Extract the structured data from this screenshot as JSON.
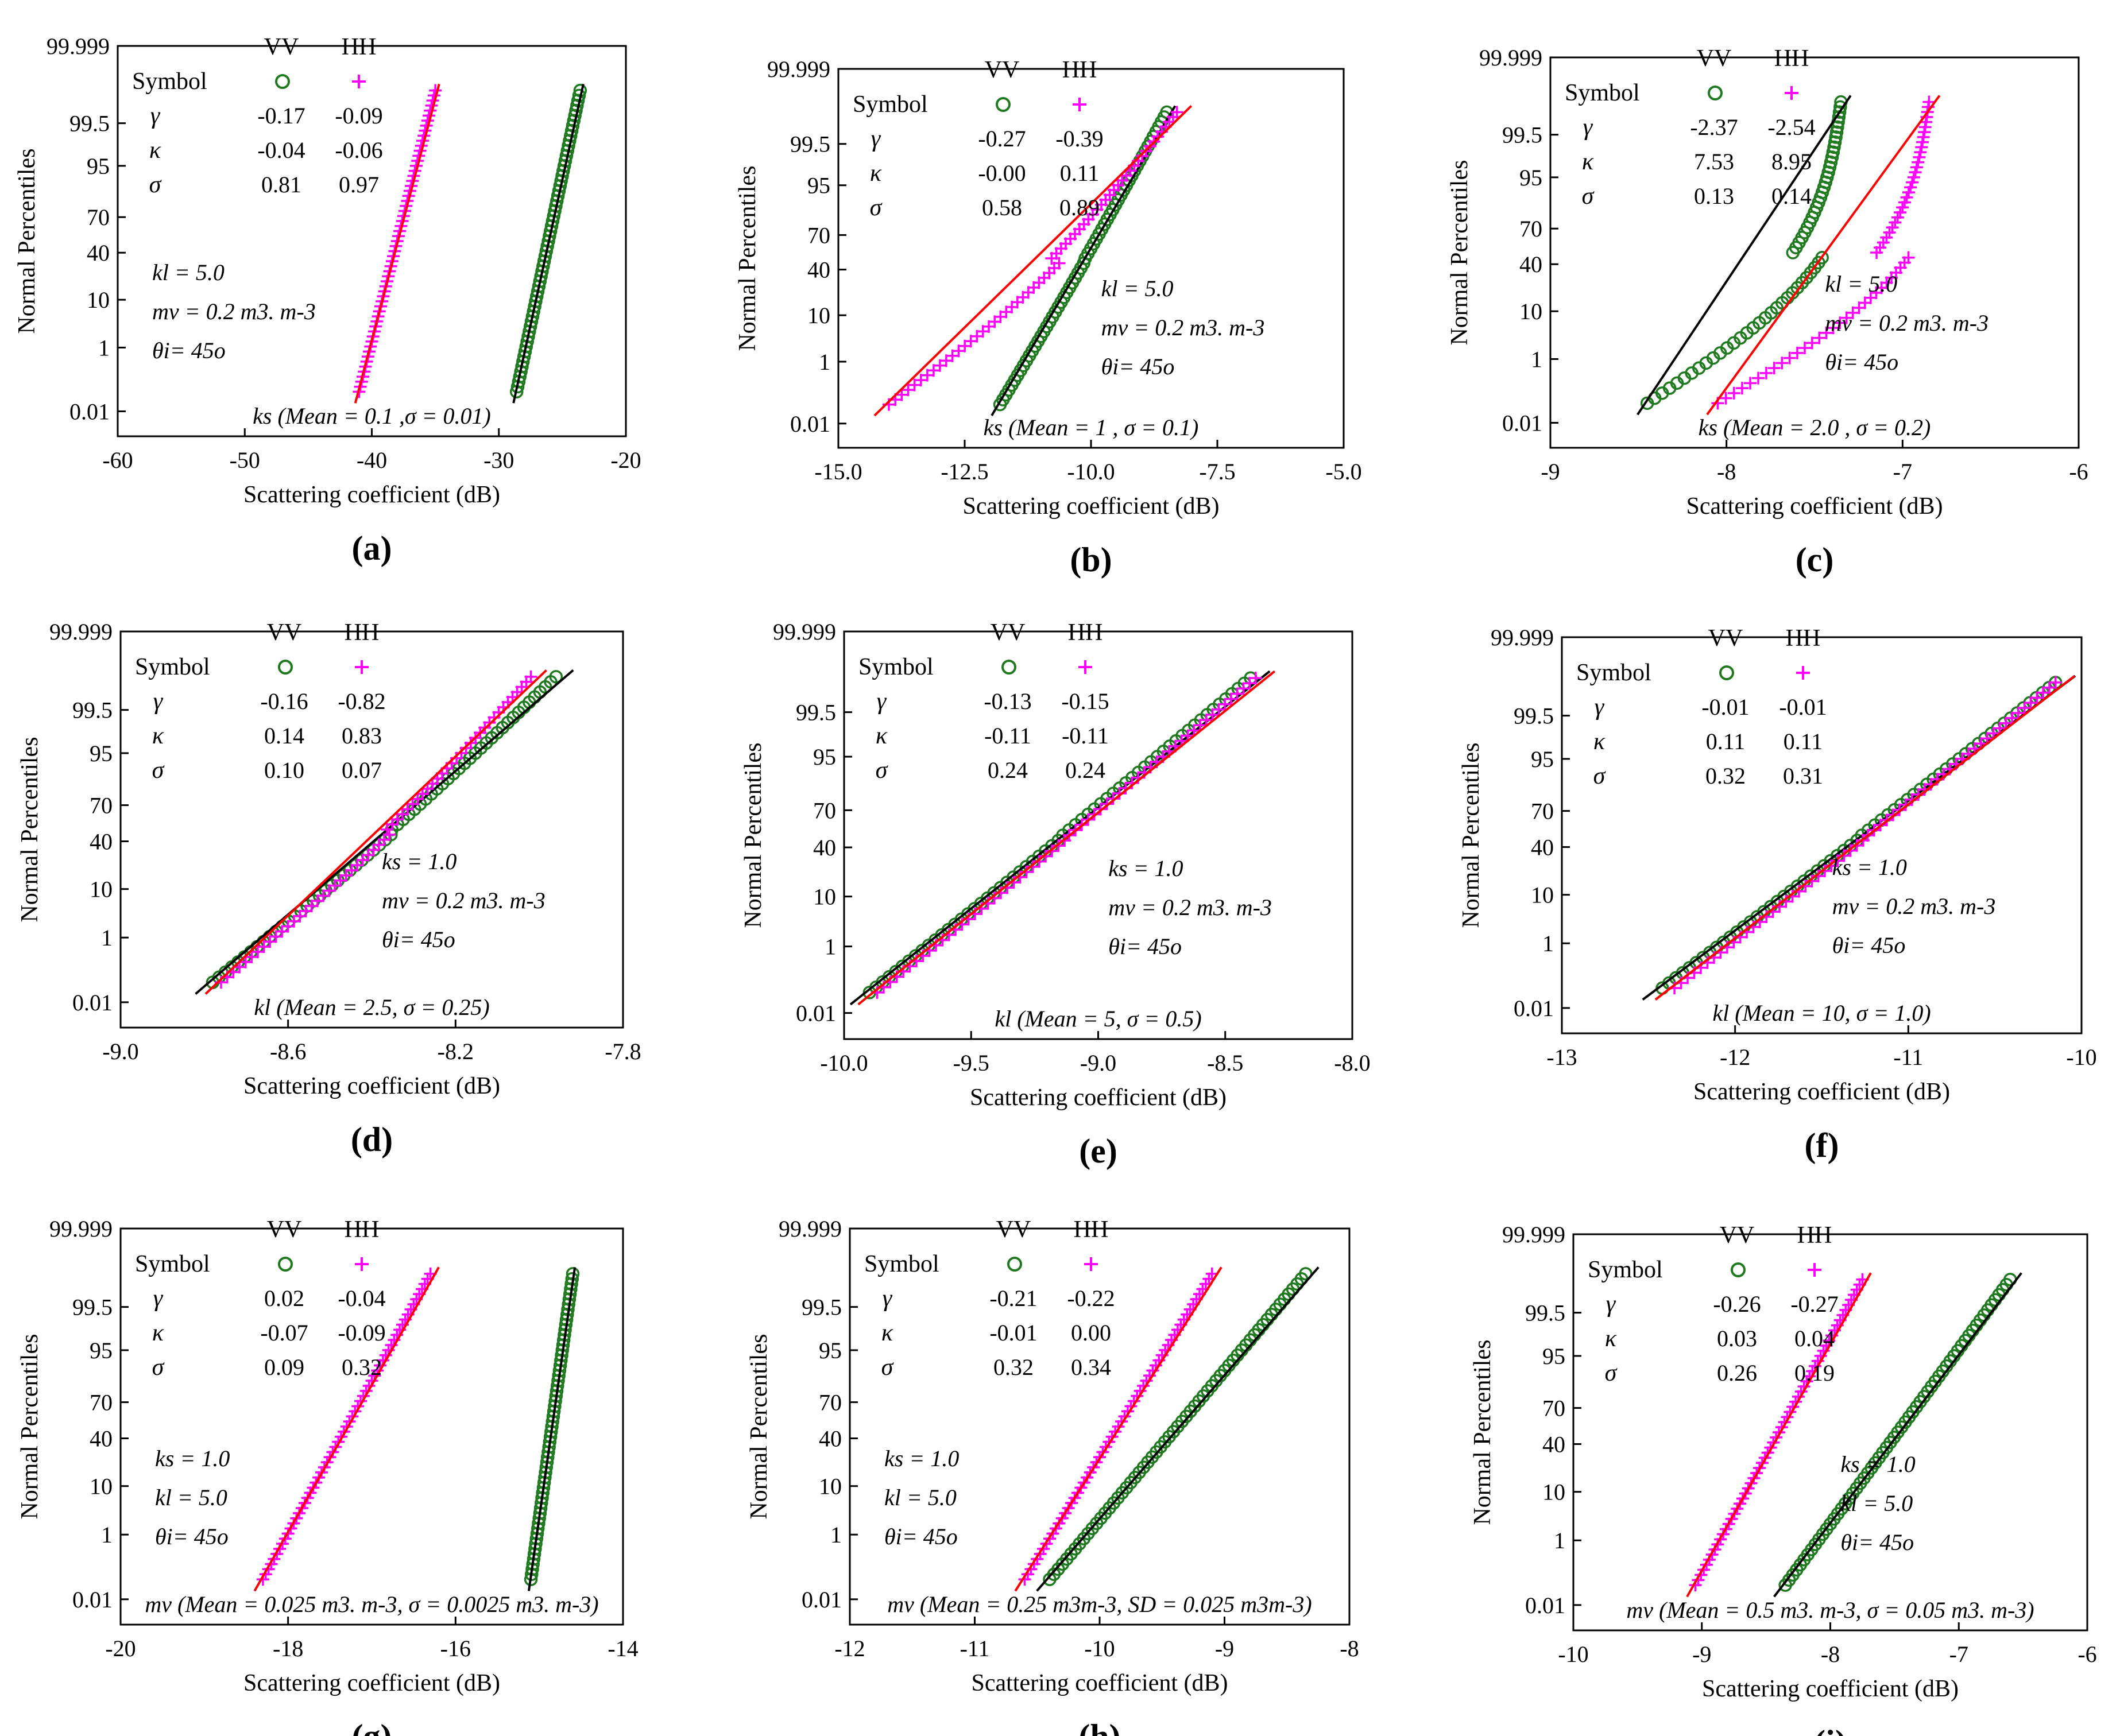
{
  "figure": {
    "y_axis_label": "Normal Percentiles",
    "x_axis_label": "Scattering coefficient (dB)",
    "y_ticks": [
      "0.01",
      "1",
      "10",
      "40",
      "70",
      "95",
      "99.5",
      "99.999"
    ],
    "stats_header": {
      "symbol": "Symbol",
      "vv": "VV",
      "hh": "HH"
    },
    "stat_names": [
      "γ",
      "κ",
      "σ"
    ],
    "colors": {
      "vv": "#1f7a1f",
      "hh": "#ff00ff",
      "vv_fit": "#000000",
      "hh_fit": "#ff0000"
    },
    "marker_icons": {
      "vv": "circle-icon",
      "hh": "plus-icon"
    }
  },
  "chart_data": [
    {
      "panel": "(a)",
      "type": "scatter",
      "title": "",
      "xlabel": "Scattering coefficient (dB)",
      "ylabel": "Normal Percentiles",
      "xlim": [
        -60,
        -20
      ],
      "x_ticks": [
        "-60",
        "-50",
        "-40",
        "-30",
        "-20"
      ],
      "stats": {
        "vv": [
          "-0.17",
          "-0.04",
          "0.81"
        ],
        "hh": [
          "-0.09",
          "-0.06",
          "0.97"
        ]
      },
      "annotations": [
        "kl = 5.0",
        "mv = 0.2 m3. m-3",
        "θi= 45o",
        "ks (Mean = 0.1 ,σ = 0.01)"
      ],
      "series": [
        {
          "name": "VV",
          "x_min": -28.6,
          "x_max": -23.6,
          "p_min": 0.05,
          "p_max": 99.95,
          "shape": 0
        },
        {
          "name": "HH",
          "x_min": -41.0,
          "x_max": -35.0,
          "p_min": 0.05,
          "p_max": 99.95,
          "shape": 0
        }
      ]
    },
    {
      "panel": "(b)",
      "type": "scatter",
      "title": "",
      "xlabel": "Scattering coefficient (dB)",
      "ylabel": "Normal Percentiles",
      "xlim": [
        -15,
        -5
      ],
      "x_ticks": [
        "-15.0",
        "-12.5",
        "-10.0",
        "-7.5",
        "-5.0"
      ],
      "stats": {
        "vv": [
          "-0.27",
          "-0.00",
          "0.58"
        ],
        "hh": [
          "-0.39",
          "0.11",
          "0.89"
        ]
      },
      "annotations": [
        "kl = 5.0",
        "mv = 0.2 m3. m-3",
        "θi= 45o",
        "ks (Mean = 1 , σ = 0.1)"
      ],
      "series": [
        {
          "name": "VV",
          "x_min": -11.8,
          "x_max": -8.5,
          "p_min": 0.05,
          "p_max": 99.95,
          "shape": 0.15
        },
        {
          "name": "HH",
          "x_min": -14.0,
          "x_max": -8.3,
          "p_min": 0.05,
          "p_max": 99.95,
          "shape": 0.9
        }
      ]
    },
    {
      "panel": "(c)",
      "type": "scatter",
      "title": "",
      "xlabel": "Scattering coefficient (dB)",
      "ylabel": "Normal Percentiles",
      "xlim": [
        -9,
        -6
      ],
      "x_ticks": [
        "-9",
        "-8",
        "-7",
        "-6"
      ],
      "stats": {
        "vv": [
          "-2.37",
          "7.53",
          "0.13"
        ],
        "hh": [
          "-2.54",
          "8.95",
          "0.14"
        ]
      },
      "annotations": [
        "kl = 5.0",
        "mv = 0.2 m3. m-3",
        "θi= 45o",
        "ks (Mean = 2.0 , σ = 0.2)"
      ],
      "series": [
        {
          "name": "VV",
          "x_min": -8.45,
          "x_max": -7.35,
          "p_min": 0.05,
          "p_max": 99.95,
          "shape": 3.5
        },
        {
          "name": "HH",
          "x_min": -8.05,
          "x_max": -6.85,
          "p_min": 0.05,
          "p_max": 99.95,
          "shape": 3.5
        }
      ]
    },
    {
      "panel": "(d)",
      "type": "scatter",
      "title": "",
      "xlabel": "Scattering coefficient (dB)",
      "ylabel": "Normal Percentiles",
      "xlim": [
        -9.0,
        -7.8
      ],
      "x_ticks": [
        "-9.0",
        "-8.6",
        "-8.2",
        "-7.8"
      ],
      "stats": {
        "vv": [
          "-0.16",
          "0.14",
          "0.10"
        ],
        "hh": [
          "-0.82",
          "0.83",
          "0.07"
        ]
      },
      "annotations": [
        "ks = 1.0",
        "mv = 0.2 m3. m-3",
        "θi= 45o",
        "kl (Mean = 2.5, σ = 0.25)"
      ],
      "series": [
        {
          "name": "VV",
          "x_min": -8.78,
          "x_max": -7.96,
          "p_min": 0.05,
          "p_max": 99.95,
          "shape": 0.3
        },
        {
          "name": "HH",
          "x_min": -8.76,
          "x_max": -8.02,
          "p_min": 0.05,
          "p_max": 99.95,
          "shape": 0.5
        }
      ]
    },
    {
      "panel": "(e)",
      "type": "scatter",
      "title": "",
      "xlabel": "Scattering coefficient (dB)",
      "ylabel": "Normal Percentiles",
      "xlim": [
        -10,
        -8
      ],
      "x_ticks": [
        "-10.0",
        "-9.5",
        "-9.0",
        "-8.5",
        "-8.0"
      ],
      "stats": {
        "vv": [
          "-0.13",
          "-0.11",
          "0.24"
        ],
        "hh": [
          "-0.15",
          "-0.11",
          "0.24"
        ]
      },
      "annotations": [
        "ks = 1.0",
        "mv = 0.2 m3. m-3",
        "θi= 45o",
        "kl (Mean = 5, σ = 0.5)"
      ],
      "series": [
        {
          "name": "VV",
          "x_min": -9.9,
          "x_max": -8.4,
          "p_min": 0.05,
          "p_max": 99.95,
          "shape": 0.1
        },
        {
          "name": "HH",
          "x_min": -9.87,
          "x_max": -8.38,
          "p_min": 0.05,
          "p_max": 99.95,
          "shape": 0.1
        }
      ]
    },
    {
      "panel": "(f)",
      "type": "scatter",
      "title": "",
      "xlabel": "Scattering coefficient (dB)",
      "ylabel": "Normal Percentiles",
      "xlim": [
        -13,
        -10
      ],
      "x_ticks": [
        "-13",
        "-12",
        "-11",
        "-10"
      ],
      "stats": {
        "vv": [
          "-0.01",
          "0.11",
          "0.32"
        ],
        "hh": [
          "-0.01",
          "0.11",
          "0.31"
        ]
      },
      "annotations": [
        "ks = 1.0",
        "mv = 0.2 m3. m-3",
        "θi= 45o",
        "kl (Mean = 10, σ = 1.0)"
      ],
      "series": [
        {
          "name": "VV",
          "x_min": -12.42,
          "x_max": -10.15,
          "p_min": 0.05,
          "p_max": 99.95,
          "shape": 0.1
        },
        {
          "name": "HH",
          "x_min": -12.35,
          "x_max": -10.15,
          "p_min": 0.05,
          "p_max": 99.95,
          "shape": 0.1
        }
      ]
    },
    {
      "panel": "(g)",
      "type": "scatter",
      "title": "",
      "xlabel": "Scattering coefficient (dB)",
      "ylabel": "Normal Percentiles",
      "xlim": [
        -20,
        -14
      ],
      "x_ticks": [
        "-20",
        "-18",
        "-16",
        "-14"
      ],
      "stats": {
        "vv": [
          "0.02",
          "-0.07",
          "0.09"
        ],
        "hh": [
          "-0.04",
          "-0.09",
          "0.32"
        ]
      },
      "annotations": [
        "ks = 1.0",
        "kl = 5.0",
        "θi= 45o",
        "mv (Mean = 0.025 m3. m-3, σ = 0.0025 m3. m-3)"
      ],
      "series": [
        {
          "name": "VV",
          "x_min": -15.1,
          "x_max": -14.6,
          "p_min": 0.05,
          "p_max": 99.95,
          "shape": 0
        },
        {
          "name": "HH",
          "x_min": -18.3,
          "x_max": -16.3,
          "p_min": 0.05,
          "p_max": 99.95,
          "shape": 0
        }
      ]
    },
    {
      "panel": "(h)",
      "type": "scatter",
      "title": "",
      "xlabel": "Scattering coefficient (dB)",
      "ylabel": "Normal Percentiles",
      "xlim": [
        -12,
        -8
      ],
      "x_ticks": [
        "-12",
        "-11",
        "-10",
        "-9",
        "-8"
      ],
      "stats": {
        "vv": [
          "-0.21",
          "-0.01",
          "0.32"
        ],
        "hh": [
          "-0.22",
          "0.00",
          "0.34"
        ]
      },
      "annotations": [
        "ks = 1.0",
        "kl = 5.0",
        "θi= 45o",
        "mv (Mean = 0.25 m3m-3, SD = 0.025 m3m-3)"
      ],
      "series": [
        {
          "name": "VV",
          "x_min": -10.4,
          "x_max": -8.35,
          "p_min": 0.05,
          "p_max": 99.95,
          "shape": 0
        },
        {
          "name": "HH",
          "x_min": -10.6,
          "x_max": -9.1,
          "p_min": 0.05,
          "p_max": 99.95,
          "shape": 0
        }
      ]
    },
    {
      "panel": "(i)",
      "type": "scatter",
      "title": "",
      "xlabel": "Scattering coefficient (dB)",
      "ylabel": "Normal Percentiles",
      "xlim": [
        -10,
        -6
      ],
      "x_ticks": [
        "-10",
        "-9",
        "-8",
        "-7",
        "-6"
      ],
      "stats": {
        "vv": [
          "-0.26",
          "0.03",
          "0.26"
        ],
        "hh": [
          "-0.27",
          "0.04",
          "0.19"
        ]
      },
      "annotations": [
        "ks = 1.0",
        "kl = 5.0",
        "θi= 45o",
        "mv (Mean = 0.5 m3. m-3, σ = 0.05 m3. m-3)"
      ],
      "series": [
        {
          "name": "VV",
          "x_min": -8.35,
          "x_max": -6.6,
          "p_min": 0.05,
          "p_max": 99.95,
          "shape": 0
        },
        {
          "name": "HH",
          "x_min": -9.05,
          "x_max": -7.75,
          "p_min": 0.05,
          "p_max": 99.95,
          "shape": 0
        }
      ]
    }
  ]
}
